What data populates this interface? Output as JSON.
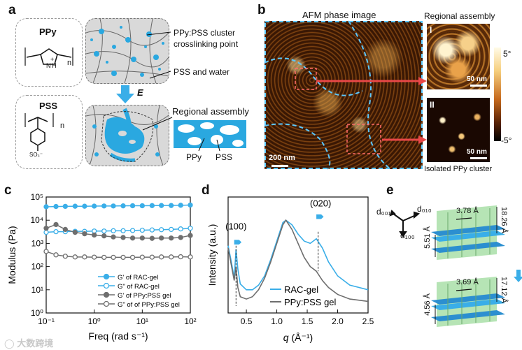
{
  "panel_a": {
    "label": "a",
    "ppy": "PPy",
    "pss": "PSS",
    "n1": "n",
    "n2": "n",
    "plus": "+",
    "nh": "N H",
    "so3": "SO₃⁻",
    "crosslink_line1": "PPy:PSS cluster",
    "crosslink_line2": "crosslinking point",
    "pss_water": "PSS and water",
    "field": "E",
    "regional": "Regional assembly",
    "ppy_lbl": "PPy",
    "pss_lbl": "PSS"
  },
  "panel_b": {
    "label": "b",
    "title": "AFM phase image",
    "regional": "Regional assembly",
    "roman1": "I",
    "roman2": "II",
    "scale_main": "200 nm",
    "scale_z1": "50 nm",
    "scale_z2": "50 nm",
    "cb_top": "5°",
    "cb_bot": "-5°",
    "isolated": "Isolated PPy cluster"
  },
  "panel_c": {
    "label": "c",
    "xlabel": "Freq (rad s⁻¹)",
    "ylabel": "Modulus (Pa)",
    "xticks": [
      "10⁻¹",
      "10⁰",
      "10¹",
      "10²"
    ],
    "yticks": [
      "10⁰",
      "10¹",
      "10²",
      "10³",
      "10⁴",
      "10⁵"
    ],
    "legend": [
      "G' of RAC-gel",
      "G\" of RAC-gel",
      "G' of PPy:PSS gel",
      "G\" of of PPy:PSS gel"
    ]
  },
  "panel_d": {
    "label": "d",
    "ylabel": "Intensity (a.u.)",
    "xlabel_q": "q",
    "xlabel_unit": " (Å⁻¹)",
    "xticks": [
      "0.5",
      "1.0",
      "1.5",
      "2.0",
      "2.5"
    ],
    "peak100": "(100)",
    "peak020": "(020)",
    "legend": [
      "RAC-gel",
      "PPy:PSS gel"
    ]
  },
  "panel_e": {
    "label": "e",
    "d001": "d₀₀₁",
    "d010": "d₀₁₀",
    "d100": "d₁₀₀",
    "top_pi": "3.78 Å",
    "top_side": "18.26 Å",
    "top_left": "5.51 Å",
    "bot_pi": "3.69 Å",
    "bot_side": "17.12 Å",
    "bot_left": "4.56 Å"
  },
  "watermark": "大数跨境",
  "colors": {
    "blue": "#3aaee8",
    "gray": "#707070",
    "dark": "#2a2a2a"
  },
  "chart_data": [
    {
      "type": "line",
      "title": "",
      "xlabel": "Freq (rad s⁻¹)",
      "ylabel": "Modulus (Pa)",
      "xscale": "log",
      "yscale": "log",
      "xlim": [
        0.1,
        100
      ],
      "ylim": [
        1,
        100000
      ],
      "x": [
        0.1,
        0.16,
        0.25,
        0.4,
        0.63,
        1,
        1.6,
        2.5,
        4,
        6.3,
        10,
        16,
        25,
        40,
        63,
        100
      ],
      "series": [
        {
          "name": "G' of RAC-gel",
          "values": [
            38000,
            39000,
            39500,
            40000,
            40000,
            40500,
            41000,
            41000,
            41500,
            42000,
            42000,
            42500,
            43000,
            43000,
            44000,
            45000
          ]
        },
        {
          "name": "G\" of RAC-gel",
          "values": [
            3000,
            3200,
            3200,
            3300,
            3300,
            3400,
            3400,
            3500,
            3500,
            3600,
            3700,
            3800,
            3900,
            4000,
            4200,
            4500
          ]
        },
        {
          "name": "G' of PPy:PSS gel",
          "values": [
            4500,
            6500,
            4000,
            3000,
            2600,
            2300,
            2100,
            1900,
            1800,
            1700,
            1700,
            1650,
            1700,
            1700,
            1800,
            2200
          ]
        },
        {
          "name": "G\" of of PPy:PSS gel",
          "values": [
            450,
            320,
            280,
            260,
            260,
            255,
            250,
            250,
            250,
            250,
            255,
            255,
            260,
            260,
            265,
            260
          ]
        }
      ]
    },
    {
      "type": "line",
      "title": "",
      "xlabel": "q (Å⁻¹)",
      "ylabel": "Intensity (a.u.)",
      "xlim": [
        0.2,
        2.5
      ],
      "annotations": [
        "(100)",
        "(020)"
      ],
      "x": [
        0.2,
        0.25,
        0.3,
        0.33,
        0.36,
        0.4,
        0.5,
        0.6,
        0.7,
        0.8,
        0.9,
        1.0,
        1.1,
        1.15,
        1.25,
        1.35,
        1.45,
        1.55,
        1.65,
        1.75,
        1.85,
        2.0,
        2.2,
        2.5
      ],
      "series": [
        {
          "name": "RAC-gel",
          "values": [
            0.58,
            0.45,
            0.3,
            0.55,
            0.38,
            0.25,
            0.2,
            0.2,
            0.24,
            0.32,
            0.46,
            0.62,
            0.78,
            0.8,
            0.76,
            0.68,
            0.62,
            0.6,
            0.64,
            0.56,
            0.44,
            0.32,
            0.24,
            0.2
          ]
        },
        {
          "name": "PPy:PSS gel",
          "values": [
            0.56,
            0.42,
            0.28,
            0.4,
            0.22,
            0.14,
            0.12,
            0.14,
            0.2,
            0.3,
            0.44,
            0.6,
            0.76,
            0.8,
            0.72,
            0.6,
            0.48,
            0.4,
            0.36,
            0.28,
            0.22,
            0.16,
            0.12,
            0.1
          ]
        }
      ]
    }
  ]
}
